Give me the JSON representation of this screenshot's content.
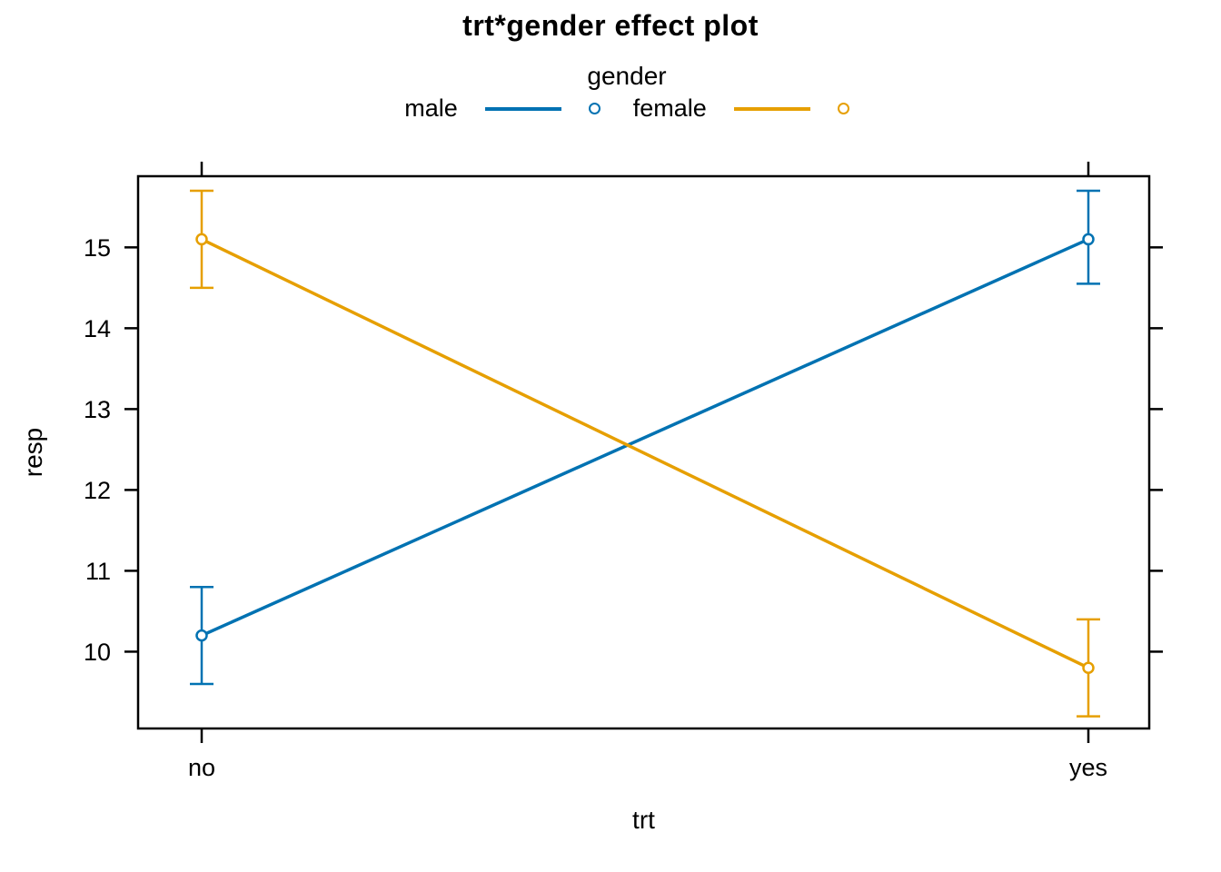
{
  "title": "trt*gender effect plot",
  "legend": {
    "title": "gender",
    "items": [
      {
        "label": "male",
        "color": "#0072B2",
        "marker": "open-circle-icon"
      },
      {
        "label": "female",
        "color": "#E69F00",
        "marker": "open-circle-icon"
      }
    ]
  },
  "chart_data": {
    "type": "line",
    "title": "trt*gender effect plot",
    "xlabel": "trt",
    "ylabel": "resp",
    "categories": [
      "no",
      "yes"
    ],
    "yticks": [
      10,
      11,
      12,
      13,
      14,
      15
    ],
    "ylim": [
      9.05,
      15.88
    ],
    "grid": false,
    "legend_title": "gender",
    "legend_position": "top-center",
    "marker": "open-circle",
    "error_bars": true,
    "series": [
      {
        "name": "male",
        "color": "#0072B2",
        "values": [
          10.2,
          15.1
        ],
        "ci_low": [
          9.6,
          14.55
        ],
        "ci_high": [
          10.8,
          15.7
        ]
      },
      {
        "name": "female",
        "color": "#E69F00",
        "values": [
          15.1,
          9.8
        ],
        "ci_low": [
          14.5,
          9.2
        ],
        "ci_high": [
          15.7,
          10.4
        ]
      }
    ],
    "axis_color": "#000000",
    "text_color": "#000000",
    "background_color": "#ffffff"
  }
}
